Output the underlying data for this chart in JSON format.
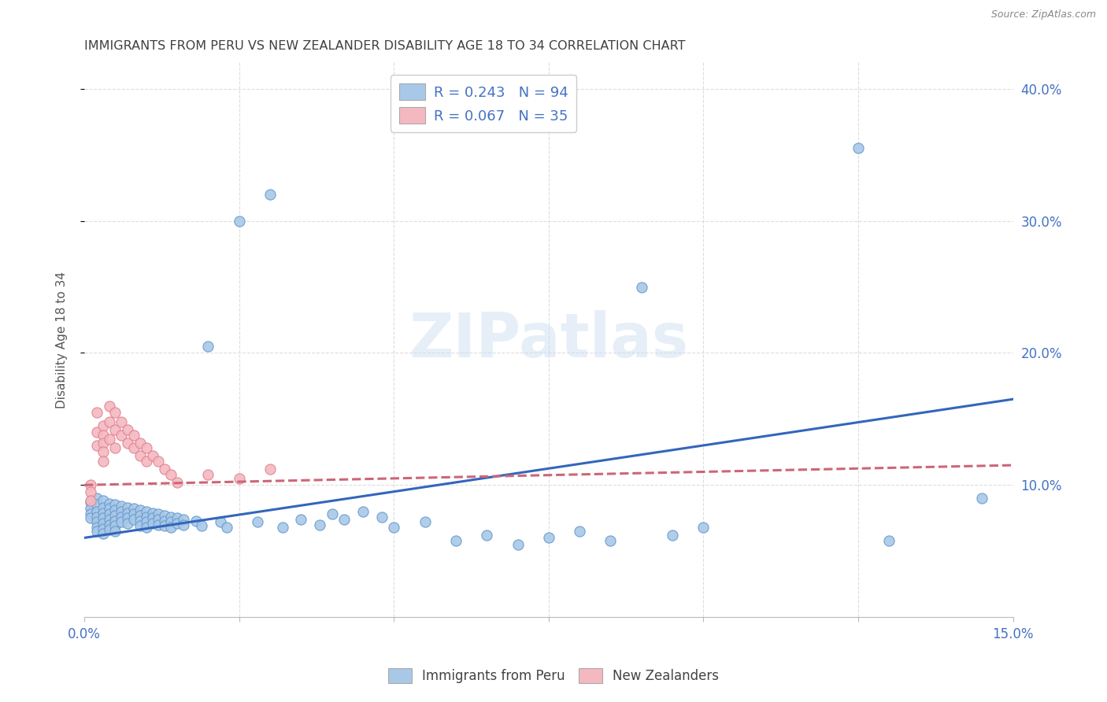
{
  "title": "IMMIGRANTS FROM PERU VS NEW ZEALANDER DISABILITY AGE 18 TO 34 CORRELATION CHART",
  "source": "Source: ZipAtlas.com",
  "ylabel": "Disability Age 18 to 34",
  "xlim": [
    0.0,
    0.15
  ],
  "ylim": [
    0.0,
    0.42
  ],
  "xtick_positions": [
    0.0,
    0.025,
    0.05,
    0.075,
    0.1,
    0.125,
    0.15
  ],
  "xtick_labels": [
    "0.0%",
    "",
    "",
    "",
    "",
    "",
    "15.0%"
  ],
  "ytick_positions": [
    0.1,
    0.2,
    0.3,
    0.4
  ],
  "ytick_labels": [
    "10.0%",
    "20.0%",
    "30.0%",
    "40.0%"
  ],
  "blue_color": "#a8c8e8",
  "blue_edge_color": "#6699cc",
  "pink_color": "#f4b8c0",
  "pink_edge_color": "#e08090",
  "blue_line_color": "#3366bb",
  "pink_line_color": "#cc6677",
  "legend_label1": "Immigrants from Peru",
  "legend_label2": "New Zealanders",
  "legend_R1": "R = 0.243",
  "legend_N1": "N = 94",
  "legend_R2": "R = 0.067",
  "legend_N2": "N = 35",
  "watermark_text": "ZIPatlas",
  "axis_label_color": "#4472c4",
  "title_color": "#404040",
  "source_color": "#888888",
  "grid_color": "#dddddd",
  "blue_line_x": [
    0.0,
    0.15
  ],
  "blue_line_y": [
    0.06,
    0.165
  ],
  "pink_line_x": [
    0.0,
    0.15
  ],
  "pink_line_y": [
    0.1,
    0.115
  ],
  "blue_scatter": [
    [
      0.001,
      0.087
    ],
    [
      0.001,
      0.082
    ],
    [
      0.001,
      0.078
    ],
    [
      0.001,
      0.075
    ],
    [
      0.002,
      0.09
    ],
    [
      0.002,
      0.085
    ],
    [
      0.002,
      0.08
    ],
    [
      0.002,
      0.076
    ],
    [
      0.002,
      0.072
    ],
    [
      0.002,
      0.068
    ],
    [
      0.002,
      0.065
    ],
    [
      0.003,
      0.088
    ],
    [
      0.003,
      0.083
    ],
    [
      0.003,
      0.079
    ],
    [
      0.003,
      0.075
    ],
    [
      0.003,
      0.071
    ],
    [
      0.003,
      0.067
    ],
    [
      0.003,
      0.063
    ],
    [
      0.004,
      0.086
    ],
    [
      0.004,
      0.082
    ],
    [
      0.004,
      0.078
    ],
    [
      0.004,
      0.074
    ],
    [
      0.004,
      0.07
    ],
    [
      0.004,
      0.066
    ],
    [
      0.005,
      0.085
    ],
    [
      0.005,
      0.081
    ],
    [
      0.005,
      0.077
    ],
    [
      0.005,
      0.073
    ],
    [
      0.005,
      0.069
    ],
    [
      0.005,
      0.065
    ],
    [
      0.006,
      0.084
    ],
    [
      0.006,
      0.08
    ],
    [
      0.006,
      0.076
    ],
    [
      0.006,
      0.072
    ],
    [
      0.007,
      0.083
    ],
    [
      0.007,
      0.079
    ],
    [
      0.007,
      0.075
    ],
    [
      0.007,
      0.071
    ],
    [
      0.008,
      0.082
    ],
    [
      0.008,
      0.078
    ],
    [
      0.008,
      0.074
    ],
    [
      0.009,
      0.081
    ],
    [
      0.009,
      0.077
    ],
    [
      0.009,
      0.073
    ],
    [
      0.009,
      0.069
    ],
    [
      0.01,
      0.08
    ],
    [
      0.01,
      0.076
    ],
    [
      0.01,
      0.072
    ],
    [
      0.01,
      0.068
    ],
    [
      0.011,
      0.079
    ],
    [
      0.011,
      0.075
    ],
    [
      0.011,
      0.071
    ],
    [
      0.012,
      0.078
    ],
    [
      0.012,
      0.074
    ],
    [
      0.012,
      0.07
    ],
    [
      0.013,
      0.077
    ],
    [
      0.013,
      0.073
    ],
    [
      0.013,
      0.069
    ],
    [
      0.014,
      0.076
    ],
    [
      0.014,
      0.072
    ],
    [
      0.014,
      0.068
    ],
    [
      0.015,
      0.075
    ],
    [
      0.015,
      0.071
    ],
    [
      0.016,
      0.074
    ],
    [
      0.016,
      0.07
    ],
    [
      0.018,
      0.073
    ],
    [
      0.019,
      0.069
    ],
    [
      0.02,
      0.205
    ],
    [
      0.022,
      0.072
    ],
    [
      0.023,
      0.068
    ],
    [
      0.025,
      0.3
    ],
    [
      0.028,
      0.072
    ],
    [
      0.03,
      0.32
    ],
    [
      0.032,
      0.068
    ],
    [
      0.035,
      0.074
    ],
    [
      0.038,
      0.07
    ],
    [
      0.04,
      0.078
    ],
    [
      0.042,
      0.074
    ],
    [
      0.045,
      0.08
    ],
    [
      0.048,
      0.076
    ],
    [
      0.05,
      0.068
    ],
    [
      0.055,
      0.072
    ],
    [
      0.06,
      0.058
    ],
    [
      0.065,
      0.062
    ],
    [
      0.07,
      0.055
    ],
    [
      0.075,
      0.06
    ],
    [
      0.08,
      0.065
    ],
    [
      0.085,
      0.058
    ],
    [
      0.09,
      0.25
    ],
    [
      0.095,
      0.062
    ],
    [
      0.1,
      0.068
    ],
    [
      0.125,
      0.355
    ],
    [
      0.13,
      0.058
    ],
    [
      0.145,
      0.09
    ]
  ],
  "pink_scatter": [
    [
      0.001,
      0.1
    ],
    [
      0.001,
      0.095
    ],
    [
      0.001,
      0.088
    ],
    [
      0.002,
      0.155
    ],
    [
      0.002,
      0.14
    ],
    [
      0.002,
      0.13
    ],
    [
      0.003,
      0.145
    ],
    [
      0.003,
      0.138
    ],
    [
      0.003,
      0.132
    ],
    [
      0.003,
      0.125
    ],
    [
      0.003,
      0.118
    ],
    [
      0.004,
      0.16
    ],
    [
      0.004,
      0.148
    ],
    [
      0.004,
      0.135
    ],
    [
      0.005,
      0.155
    ],
    [
      0.005,
      0.142
    ],
    [
      0.005,
      0.128
    ],
    [
      0.006,
      0.148
    ],
    [
      0.006,
      0.138
    ],
    [
      0.007,
      0.142
    ],
    [
      0.007,
      0.132
    ],
    [
      0.008,
      0.138
    ],
    [
      0.008,
      0.128
    ],
    [
      0.009,
      0.132
    ],
    [
      0.009,
      0.122
    ],
    [
      0.01,
      0.128
    ],
    [
      0.01,
      0.118
    ],
    [
      0.011,
      0.122
    ],
    [
      0.012,
      0.118
    ],
    [
      0.013,
      0.112
    ],
    [
      0.014,
      0.108
    ],
    [
      0.015,
      0.102
    ],
    [
      0.02,
      0.108
    ],
    [
      0.025,
      0.105
    ],
    [
      0.03,
      0.112
    ]
  ]
}
